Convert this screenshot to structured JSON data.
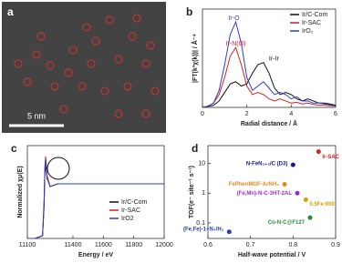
{
  "panel_a": {
    "label": "a",
    "scale_bar": "5 nm"
  },
  "chart_data": [
    {
      "type": "line",
      "panel": "b",
      "xlabel": "Radial distance / Å",
      "ylabel": "|FT(k³χ(k))| / Å⁻⁴",
      "xlim": [
        0,
        6
      ],
      "xticks": [
        0,
        2,
        4,
        6
      ],
      "ylim": [
        0,
        2.3
      ],
      "x": [
        0,
        0.25,
        0.5,
        0.75,
        1,
        1.25,
        1.5,
        1.75,
        2,
        2.25,
        2.5,
        2.75,
        3,
        3.25,
        3.5,
        3.75,
        4,
        4.25,
        4.5,
        4.75,
        5,
        5.25,
        5.5,
        5.75,
        6
      ],
      "series": [
        {
          "name": "Ir/C-Com",
          "color": "#111111",
          "values": [
            0,
            0.02,
            0.05,
            0.15,
            0.35,
            0.55,
            0.6,
            0.5,
            0.55,
            0.8,
            1.0,
            1.05,
            0.8,
            0.45,
            0.3,
            0.35,
            0.3,
            0.2,
            0.15,
            0.2,
            0.15,
            0.1,
            0.1,
            0.08,
            0.05
          ]
        },
        {
          "name": "Ir-SAC",
          "color": "#d42020",
          "values": [
            0,
            0.03,
            0.1,
            0.3,
            0.7,
            1.2,
            1.4,
            1.0,
            0.5,
            0.3,
            0.35,
            0.3,
            0.2,
            0.15,
            0.2,
            0.15,
            0.1,
            0.12,
            0.08,
            0.1,
            0.07,
            0.05,
            0.05,
            0.04,
            0.03
          ]
        },
        {
          "name": "IrO₂",
          "color": "#2a3fc8",
          "values": [
            0,
            0.03,
            0.1,
            0.4,
            1.0,
            1.7,
            2.0,
            1.5,
            0.7,
            0.4,
            0.5,
            0.6,
            0.45,
            0.3,
            0.35,
            0.3,
            0.2,
            0.25,
            0.15,
            0.15,
            0.1,
            0.1,
            0.08,
            0.06,
            0.04
          ]
        }
      ],
      "annotations": [
        "Ir-O",
        "Ir-N(O)",
        "Ir-Ir"
      ]
    },
    {
      "type": "line",
      "panel": "c",
      "xlabel": "Energy / eV",
      "ylabel": "Normalized χμ(E)",
      "xlim": [
        11100,
        12000
      ],
      "xticks": [
        11100,
        11400,
        11600,
        11800,
        12000
      ],
      "ylim": [
        0,
        1.7
      ],
      "x": [
        11100,
        11150,
        11200,
        11210,
        11215,
        11220,
        11230,
        11250,
        11300,
        11400,
        11500,
        11600,
        11700,
        11800,
        11900,
        12000
      ],
      "series": [
        {
          "name": "Ir/C-Com",
          "color": "#111111",
          "values": [
            0,
            0,
            0.05,
            0.6,
            1.2,
            1.35,
            1.1,
            0.95,
            1.0,
            1.0,
            1.0,
            1.0,
            1.0,
            1.0,
            1.0,
            1.0
          ]
        },
        {
          "name": "Ir-SAC",
          "color": "#d42020",
          "values": [
            0,
            0,
            0.05,
            0.7,
            1.3,
            1.5,
            1.15,
            0.95,
            1.0,
            1.0,
            1.0,
            1.0,
            1.0,
            1.0,
            1.0,
            1.0
          ]
        },
        {
          "name": "IrO2",
          "color": "#2a3fc8",
          "values": [
            0,
            0,
            0.05,
            0.6,
            1.25,
            1.45,
            1.1,
            0.95,
            1.0,
            1.0,
            1.0,
            1.0,
            1.0,
            1.0,
            1.0,
            1.0
          ]
        }
      ]
    },
    {
      "type": "scatter",
      "panel": "d",
      "xlabel": "Half-wave potential / V",
      "ylabel": "TOF(e⁻ site⁻¹ s⁻¹)",
      "xlim": [
        0.6,
        0.9
      ],
      "xticks": [
        0.6,
        0.7,
        0.8,
        0.9
      ],
      "ylim": [
        0.03,
        40
      ],
      "yticks": [
        0.1,
        1,
        10
      ],
      "log_y": true,
      "labels": [
        "N-FeN₂₊₂/C (D3)",
        "Ir-SAC",
        "FePhenMOF-ArNH₃",
        "(Fe,Mn)-N-C-3HT-2AL",
        "0.5Fe-900",
        "Co-N-C@F127",
        "(Fe,Fe)-1+N₄/H₂"
      ],
      "x": [
        0.8,
        0.86,
        0.78,
        0.81,
        0.83,
        0.84,
        0.65
      ],
      "values": [
        9,
        25,
        2.0,
        1.0,
        0.6,
        0.15,
        0.05
      ],
      "colors": [
        "#1a1a8c",
        "#d42020",
        "#e08a1e",
        "#9b30b0",
        "#d8a000",
        "#2a8a3a",
        "#2040c0"
      ]
    }
  ]
}
